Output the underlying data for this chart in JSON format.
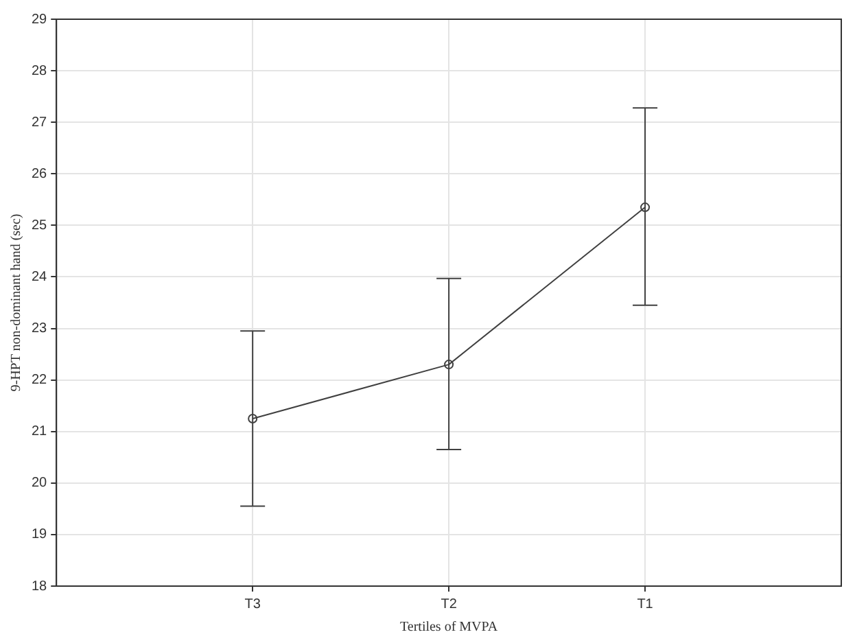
{
  "chart_data": {
    "type": "line",
    "xlabel": "Tertiles of MVPA",
    "ylabel": "9-HPT non-dominant hand (sec)",
    "categories": [
      "T3",
      "T2",
      "T1"
    ],
    "series": [
      {
        "color": "#404040",
        "values": [
          21.25,
          22.3,
          25.35
        ],
        "errors": [
          [
            19.55,
            22.95
          ],
          [
            20.65,
            23.97
          ],
          [
            23.45,
            27.28
          ]
        ]
      }
    ],
    "ylim": [
      18,
      29
    ],
    "yticks": [
      18,
      19,
      20,
      21,
      22,
      23,
      24,
      25,
      26,
      27,
      28,
      29
    ],
    "grid": true,
    "legend": false,
    "marker": "circle",
    "line_style": "solid"
  }
}
